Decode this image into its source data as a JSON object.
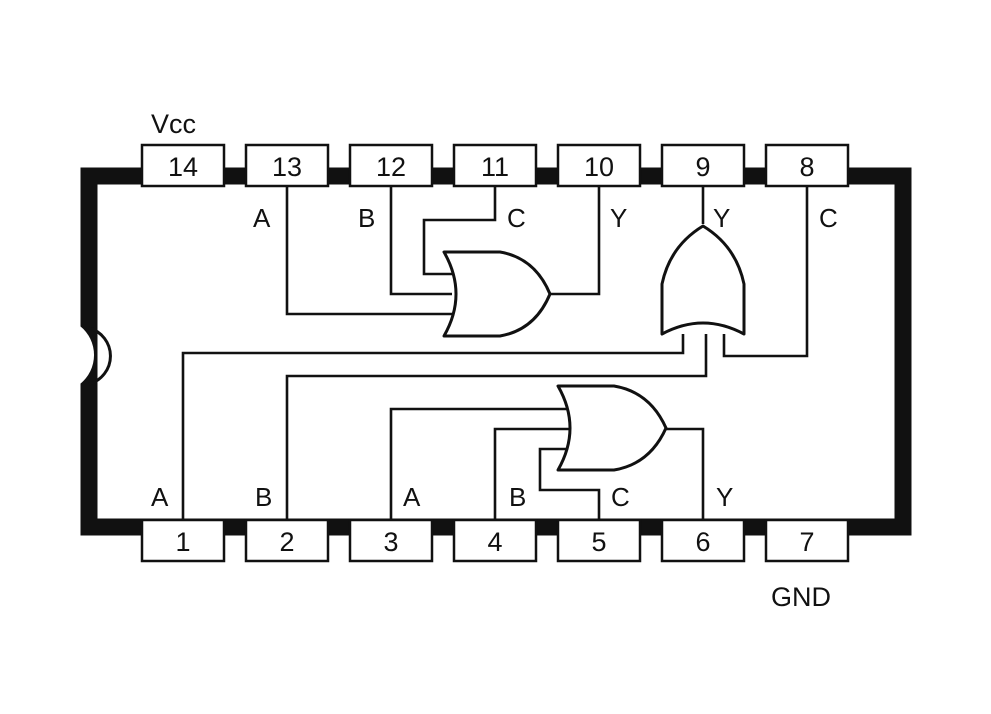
{
  "power": {
    "vcc": "Vcc",
    "gnd": "GND"
  },
  "pins_top": [
    "14",
    "13",
    "12",
    "11",
    "10",
    "9",
    "8"
  ],
  "pins_bottom": [
    "1",
    "2",
    "3",
    "4",
    "5",
    "6",
    "7"
  ],
  "top_signals": {
    "p13": "A",
    "p12": "B",
    "p11": "C",
    "p10": "Y",
    "p9": "Y",
    "p8": "C"
  },
  "bottom_signals": {
    "p1": "A",
    "p2": "B",
    "p3": "A",
    "p4": "B",
    "p5": "C",
    "p6": "Y"
  },
  "gates": [
    {
      "name": "or-gate-1",
      "inputs": [
        "13",
        "12",
        "11"
      ],
      "output": "10"
    },
    {
      "name": "or-gate-2",
      "inputs": [
        "1",
        "2",
        "8"
      ],
      "output": "9"
    },
    {
      "name": "or-gate-3",
      "inputs": [
        "3",
        "4",
        "5"
      ],
      "output": "6"
    }
  ]
}
